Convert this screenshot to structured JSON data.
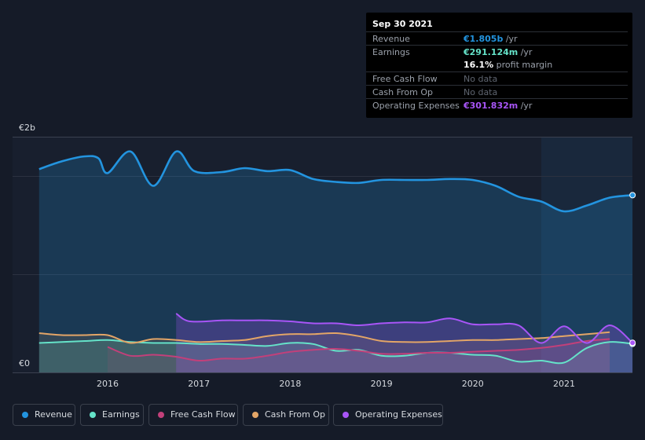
{
  "tooltip": {
    "date": "Sep 30 2021",
    "rows": [
      {
        "label": "Revenue",
        "value": "€1.805b",
        "suffix": " /yr",
        "color": "#2394df"
      },
      {
        "label": "Earnings",
        "value": "€291.124m",
        "suffix": " /yr",
        "color": "#65e3c9"
      },
      {
        "label": "",
        "value": "16.1%",
        "suffix": " profit margin",
        "color": "#ffffff"
      },
      {
        "label": "Free Cash Flow",
        "value": "No data",
        "suffix": "",
        "color": "#5f6570"
      },
      {
        "label": "Cash From Op",
        "value": "No data",
        "suffix": "",
        "color": "#5f6570"
      },
      {
        "label": "Operating Expenses",
        "value": "€301.832m",
        "suffix": " /yr",
        "color": "#a855f7"
      }
    ]
  },
  "axis": {
    "y_top_label": "€2b",
    "y_bottom_label": "€0"
  },
  "legend": [
    {
      "label": "Revenue",
      "color": "#2394df"
    },
    {
      "label": "Earnings",
      "color": "#65e3c9"
    },
    {
      "label": "Free Cash Flow",
      "color": "#c2407a"
    },
    {
      "label": "Cash From Op",
      "color": "#e3a567"
    },
    {
      "label": "Operating Expenses",
      "color": "#a855f7"
    }
  ],
  "chart_data": {
    "type": "line",
    "title": "",
    "xlabel": "",
    "ylabel": "",
    "ylim": [
      0,
      2.4
    ],
    "y_unit": "€b",
    "x_ticks": [
      2016,
      2017,
      2018,
      2019,
      2020,
      2021
    ],
    "highlight_from": 2020.75,
    "series": [
      {
        "name": "Revenue",
        "color": "#2394df",
        "points": [
          [
            2015.25,
            2.07
          ],
          [
            2015.5,
            2.15
          ],
          [
            2015.75,
            2.2
          ],
          [
            2015.9,
            2.18
          ],
          [
            2016.0,
            2.03
          ],
          [
            2016.25,
            2.25
          ],
          [
            2016.5,
            1.9
          ],
          [
            2016.75,
            2.25
          ],
          [
            2016.95,
            2.05
          ],
          [
            2017.25,
            2.04
          ],
          [
            2017.5,
            2.08
          ],
          [
            2017.75,
            2.05
          ],
          [
            2018.0,
            2.06
          ],
          [
            2018.25,
            1.97
          ],
          [
            2018.5,
            1.94
          ],
          [
            2018.75,
            1.93
          ],
          [
            2019.0,
            1.96
          ],
          [
            2019.25,
            1.96
          ],
          [
            2019.5,
            1.96
          ],
          [
            2019.75,
            1.97
          ],
          [
            2020.0,
            1.96
          ],
          [
            2020.25,
            1.9
          ],
          [
            2020.5,
            1.79
          ],
          [
            2020.75,
            1.74
          ],
          [
            2021.0,
            1.64
          ],
          [
            2021.25,
            1.7
          ],
          [
            2021.5,
            1.78
          ],
          [
            2021.75,
            1.805
          ]
        ]
      },
      {
        "name": "Earnings",
        "color": "#65e3c9",
        "points": [
          [
            2015.25,
            0.3
          ],
          [
            2015.5,
            0.31
          ],
          [
            2015.75,
            0.32
          ],
          [
            2016.0,
            0.33
          ],
          [
            2016.25,
            0.31
          ],
          [
            2016.5,
            0.3
          ],
          [
            2016.75,
            0.3
          ],
          [
            2017.0,
            0.29
          ],
          [
            2017.25,
            0.29
          ],
          [
            2017.5,
            0.28
          ],
          [
            2017.75,
            0.27
          ],
          [
            2018.0,
            0.3
          ],
          [
            2018.25,
            0.29
          ],
          [
            2018.5,
            0.22
          ],
          [
            2018.75,
            0.23
          ],
          [
            2019.0,
            0.17
          ],
          [
            2019.25,
            0.17
          ],
          [
            2019.5,
            0.2
          ],
          [
            2019.75,
            0.2
          ],
          [
            2020.0,
            0.18
          ],
          [
            2020.25,
            0.17
          ],
          [
            2020.5,
            0.11
          ],
          [
            2020.75,
            0.12
          ],
          [
            2021.0,
            0.1
          ],
          [
            2021.25,
            0.25
          ],
          [
            2021.5,
            0.31
          ],
          [
            2021.75,
            0.291
          ]
        ]
      },
      {
        "name": "Free Cash Flow",
        "color": "#c2407a",
        "points": [
          [
            2016.0,
            0.26
          ],
          [
            2016.25,
            0.17
          ],
          [
            2016.5,
            0.18
          ],
          [
            2016.75,
            0.16
          ],
          [
            2017.0,
            0.12
          ],
          [
            2017.25,
            0.14
          ],
          [
            2017.5,
            0.14
          ],
          [
            2017.75,
            0.17
          ],
          [
            2018.0,
            0.21
          ],
          [
            2018.25,
            0.23
          ],
          [
            2018.5,
            0.24
          ],
          [
            2018.75,
            0.22
          ],
          [
            2019.0,
            0.19
          ],
          [
            2019.25,
            0.19
          ],
          [
            2019.5,
            0.2
          ],
          [
            2019.75,
            0.2
          ],
          [
            2020.0,
            0.21
          ],
          [
            2020.25,
            0.22
          ],
          [
            2020.5,
            0.23
          ],
          [
            2020.75,
            0.25
          ],
          [
            2021.0,
            0.28
          ],
          [
            2021.25,
            0.32
          ],
          [
            2021.5,
            0.34
          ]
        ]
      },
      {
        "name": "Cash From Op",
        "color": "#e3a567",
        "points": [
          [
            2015.25,
            0.4
          ],
          [
            2015.5,
            0.38
          ],
          [
            2015.75,
            0.38
          ],
          [
            2016.0,
            0.38
          ],
          [
            2016.25,
            0.3
          ],
          [
            2016.5,
            0.34
          ],
          [
            2016.75,
            0.33
          ],
          [
            2017.0,
            0.31
          ],
          [
            2017.25,
            0.32
          ],
          [
            2017.5,
            0.33
          ],
          [
            2017.75,
            0.37
          ],
          [
            2018.0,
            0.39
          ],
          [
            2018.25,
            0.39
          ],
          [
            2018.5,
            0.4
          ],
          [
            2018.75,
            0.37
          ],
          [
            2019.0,
            0.32
          ],
          [
            2019.25,
            0.31
          ],
          [
            2019.5,
            0.31
          ],
          [
            2019.75,
            0.32
          ],
          [
            2020.0,
            0.33
          ],
          [
            2020.25,
            0.33
          ],
          [
            2020.5,
            0.34
          ],
          [
            2020.75,
            0.35
          ],
          [
            2021.0,
            0.37
          ],
          [
            2021.25,
            0.39
          ],
          [
            2021.5,
            0.41
          ]
        ]
      },
      {
        "name": "Operating Expenses",
        "color": "#a855f7",
        "points": [
          [
            2016.75,
            0.6
          ],
          [
            2016.9,
            0.52
          ],
          [
            2017.25,
            0.53
          ],
          [
            2017.5,
            0.53
          ],
          [
            2017.75,
            0.53
          ],
          [
            2018.0,
            0.52
          ],
          [
            2018.25,
            0.5
          ],
          [
            2018.5,
            0.5
          ],
          [
            2018.75,
            0.48
          ],
          [
            2019.0,
            0.5
          ],
          [
            2019.25,
            0.51
          ],
          [
            2019.5,
            0.51
          ],
          [
            2019.75,
            0.55
          ],
          [
            2020.0,
            0.49
          ],
          [
            2020.25,
            0.49
          ],
          [
            2020.5,
            0.48
          ],
          [
            2020.75,
            0.3
          ],
          [
            2021.0,
            0.47
          ],
          [
            2021.25,
            0.3
          ],
          [
            2021.5,
            0.48
          ],
          [
            2021.75,
            0.302
          ]
        ]
      }
    ]
  }
}
